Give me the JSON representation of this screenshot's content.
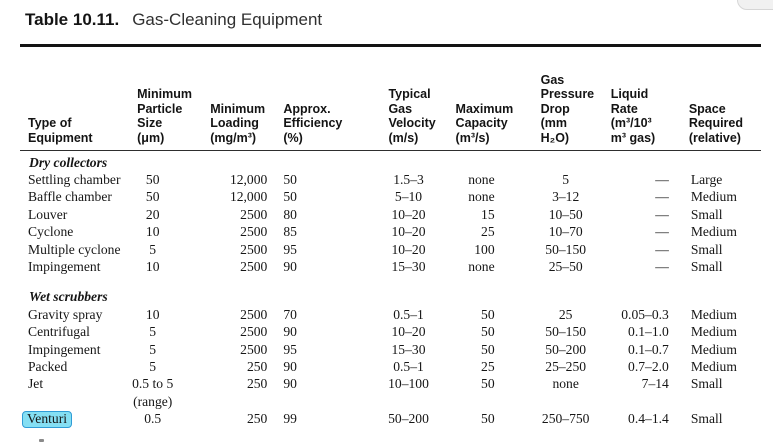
{
  "page": {
    "title_label": "Table 10.11.",
    "title_text": "Gas-Cleaning Equipment"
  },
  "highlight": {
    "text": "Venturi",
    "fill": "#85dff3",
    "border": "#2f9cd6"
  },
  "table": {
    "header": [
      {
        "lines": [
          "Type of",
          "Equipment"
        ]
      },
      {
        "lines": [
          "Minimum",
          "Particle",
          "Size",
          "(μm)"
        ]
      },
      {
        "lines": [
          "Minimum",
          "Loading",
          "(mg/m³)"
        ]
      },
      {
        "lines": [
          "Approx.",
          "Efficiency",
          "(%)"
        ]
      },
      {
        "lines": [
          "Typical",
          "Gas",
          "Velocity",
          "(m/s)"
        ]
      },
      {
        "lines": [
          "Maximum",
          "Capacity",
          "(m³/s)"
        ]
      },
      {
        "lines": [
          "Gas",
          "Pressure",
          "Drop",
          "(mm",
          "H₂O)"
        ]
      },
      {
        "lines": [
          "Liquid",
          "Rate",
          "(m³/10³",
          "m³ gas)"
        ]
      },
      {
        "lines": [
          "Space",
          "Required",
          "(relative)"
        ]
      }
    ],
    "sections": [
      {
        "name": "Dry collectors",
        "rows": [
          {
            "cells": [
              "Settling chamber",
              "50",
              "12,000",
              "50",
              "1.5–3",
              "none",
              "5",
              "—",
              "Large"
            ]
          },
          {
            "cells": [
              "Baffle chamber",
              "50",
              "12,000",
              "50",
              "5–10",
              "none",
              "3–12",
              "—",
              "Medium"
            ]
          },
          {
            "cells": [
              "Louver",
              "20",
              "2500",
              "80",
              "10–20",
              "15",
              "10–50",
              "—",
              "Small"
            ]
          },
          {
            "cells": [
              "Cyclone",
              "10",
              "2500",
              "85",
              "10–20",
              "25",
              "10–70",
              "—",
              "Medium"
            ]
          },
          {
            "cells": [
              "Multiple cyclone",
              "5",
              "2500",
              "95",
              "10–20",
              "100",
              "50–150",
              "—",
              "Small"
            ]
          },
          {
            "cells": [
              "Impingement",
              "10",
              "2500",
              "90",
              "15–30",
              "none",
              "25–50",
              "—",
              "Small"
            ]
          }
        ]
      },
      {
        "name": "Wet scrubbers",
        "rows": [
          {
            "cells": [
              "Gravity spray",
              "10",
              "2500",
              "70",
              "0.5–1",
              "50",
              "25",
              "0.05–0.3",
              "Medium"
            ]
          },
          {
            "cells": [
              "Centrifugal",
              "5",
              "2500",
              "90",
              "10–20",
              "50",
              "50–150",
              "0.1–1.0",
              "Medium"
            ]
          },
          {
            "cells": [
              "Impingement",
              "5",
              "2500",
              "95",
              "15–30",
              "50",
              "50–200",
              "0.1–0.7",
              "Medium"
            ]
          },
          {
            "cells": [
              "Packed",
              "5",
              "250",
              "90",
              "0.5–1",
              "25",
              "25–250",
              "0.7–2.0",
              "Medium"
            ]
          },
          {
            "cells": [
              "Jet",
              "0.5 to 5\n(range)",
              "250",
              "90",
              "10–100",
              "50",
              "none",
              "7–14",
              "Small"
            ]
          },
          {
            "cells": [
              "Venturi",
              "0.5",
              "250",
              "99",
              "50–200",
              "50",
              "250–750",
              "0.4–1.4",
              "Small"
            ],
            "highlight_first_cell": true
          }
        ]
      }
    ]
  }
}
